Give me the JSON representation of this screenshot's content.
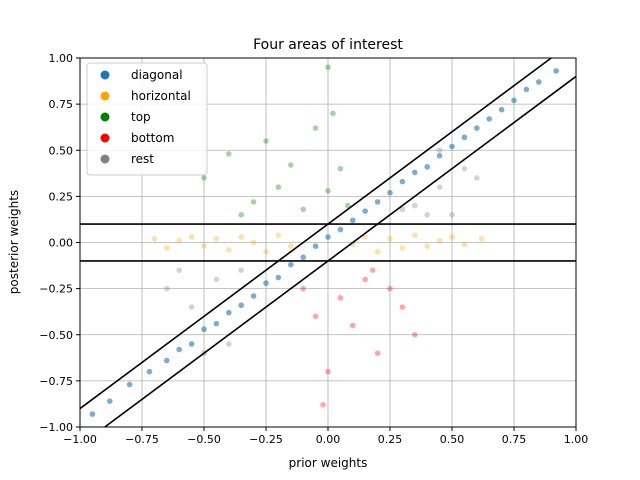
{
  "chart_data": {
    "type": "scatter",
    "title": "Four areas of interest",
    "xlabel": "prior weights",
    "ylabel": "posterior weights",
    "xlim": [
      -1.0,
      1.0
    ],
    "ylim": [
      -1.0,
      1.0
    ],
    "xticks": [
      "−1.00",
      "−0.75",
      "−0.50",
      "−0.25",
      "0.00",
      "0.25",
      "0.50",
      "0.75",
      "1.00"
    ],
    "yticks": [
      "−1.00",
      "−0.75",
      "−0.50",
      "−0.25",
      "0.00",
      "0.25",
      "0.50",
      "0.75",
      "1.00"
    ],
    "tick_values": [
      -1.0,
      -0.75,
      -0.5,
      -0.25,
      0.0,
      0.25,
      0.5,
      0.75,
      1.0
    ],
    "grid": true,
    "legend_position": "top-left",
    "series": [
      {
        "name": "diagonal",
        "color": "#1f77b4",
        "region": "|y - x| < 0.1"
      },
      {
        "name": "horizontal",
        "color": "#ffa500",
        "region": "|y| < 0.1"
      },
      {
        "name": "top",
        "color": "#008000",
        "region": "y > 0.1 and y - x > 0.1"
      },
      {
        "name": "bottom",
        "color": "#ff0000",
        "region": "y < -0.1 and x - y > 0.1"
      },
      {
        "name": "rest",
        "color": "#808080",
        "region": "all other points"
      }
    ],
    "boundary_lines": [
      {
        "kind": "diagonal",
        "slope": 1,
        "intercept": 0.1
      },
      {
        "kind": "diagonal",
        "slope": 1,
        "intercept": -0.1
      },
      {
        "kind": "horizontal",
        "y": 0.1
      },
      {
        "kind": "horizontal",
        "y": -0.1
      }
    ],
    "points": {
      "diagonal": [
        [
          -0.95,
          -0.93
        ],
        [
          -0.88,
          -0.86
        ],
        [
          -0.8,
          -0.77
        ],
        [
          -0.72,
          -0.7
        ],
        [
          -0.65,
          -0.64
        ],
        [
          -0.6,
          -0.58
        ],
        [
          -0.55,
          -0.55
        ],
        [
          -0.5,
          -0.47
        ],
        [
          -0.45,
          -0.44
        ],
        [
          -0.4,
          -0.38
        ],
        [
          -0.35,
          -0.34
        ],
        [
          -0.3,
          -0.29
        ],
        [
          -0.25,
          -0.22
        ],
        [
          -0.2,
          -0.19
        ],
        [
          -0.15,
          -0.12
        ],
        [
          -0.1,
          -0.08
        ],
        [
          -0.05,
          -0.02
        ],
        [
          0.0,
          0.03
        ],
        [
          0.05,
          0.07
        ],
        [
          0.1,
          0.12
        ],
        [
          0.15,
          0.17
        ],
        [
          0.2,
          0.22
        ],
        [
          0.25,
          0.27
        ],
        [
          0.3,
          0.33
        ],
        [
          0.35,
          0.38
        ],
        [
          0.4,
          0.41
        ],
        [
          0.45,
          0.47
        ],
        [
          0.5,
          0.52
        ],
        [
          0.55,
          0.57
        ],
        [
          0.6,
          0.62
        ],
        [
          0.65,
          0.67
        ],
        [
          0.7,
          0.72
        ],
        [
          0.75,
          0.77
        ],
        [
          0.8,
          0.83
        ],
        [
          0.85,
          0.87
        ],
        [
          0.92,
          0.93
        ]
      ],
      "horizontal": [
        [
          -0.7,
          0.02
        ],
        [
          -0.65,
          -0.03
        ],
        [
          -0.6,
          0.01
        ],
        [
          -0.55,
          0.03
        ],
        [
          -0.5,
          -0.02
        ],
        [
          -0.45,
          0.02
        ],
        [
          -0.4,
          -0.04
        ],
        [
          -0.35,
          0.03
        ],
        [
          -0.3,
          0.0
        ],
        [
          -0.25,
          -0.05
        ],
        [
          -0.2,
          0.04
        ],
        [
          -0.15,
          -0.02
        ],
        [
          0.1,
          -0.01
        ],
        [
          0.15,
          0.03
        ],
        [
          0.2,
          -0.05
        ],
        [
          0.25,
          0.02
        ],
        [
          0.3,
          -0.03
        ],
        [
          0.35,
          0.04
        ],
        [
          0.4,
          -0.02
        ],
        [
          0.45,
          0.01
        ],
        [
          0.5,
          0.03
        ],
        [
          0.55,
          -0.01
        ],
        [
          0.62,
          0.02
        ]
      ],
      "top": [
        [
          -0.5,
          0.35
        ],
        [
          -0.4,
          0.48
        ],
        [
          -0.3,
          0.22
        ],
        [
          -0.25,
          0.55
        ],
        [
          -0.2,
          0.3
        ],
        [
          -0.15,
          0.42
        ],
        [
          -0.1,
          0.18
        ],
        [
          -0.05,
          0.62
        ],
        [
          0.0,
          0.28
        ],
        [
          0.02,
          0.7
        ],
        [
          0.05,
          0.4
        ],
        [
          0.08,
          0.2
        ],
        [
          -0.35,
          0.15
        ],
        [
          0.0,
          0.95
        ]
      ],
      "bottom": [
        [
          0.0,
          -0.7
        ],
        [
          0.05,
          -0.3
        ],
        [
          0.1,
          -0.45
        ],
        [
          0.15,
          -0.2
        ],
        [
          0.2,
          -0.6
        ],
        [
          -0.05,
          -0.4
        ],
        [
          0.25,
          -0.25
        ],
        [
          0.3,
          -0.35
        ],
        [
          -0.1,
          -0.25
        ],
        [
          -0.02,
          -0.88
        ],
        [
          0.18,
          -0.15
        ],
        [
          0.35,
          -0.5
        ]
      ],
      "rest": [
        [
          -0.65,
          -0.25
        ],
        [
          -0.55,
          -0.35
        ],
        [
          -0.45,
          -0.2
        ],
        [
          -0.4,
          -0.55
        ],
        [
          -0.35,
          -0.15
        ],
        [
          -0.6,
          -0.15
        ],
        [
          -0.5,
          -0.6
        ],
        [
          0.35,
          0.2
        ],
        [
          0.45,
          0.3
        ],
        [
          0.5,
          0.15
        ],
        [
          0.55,
          0.4
        ],
        [
          0.4,
          0.15
        ],
        [
          0.6,
          0.35
        ],
        [
          0.3,
          0.18
        ],
        [
          0.45,
          0.5
        ]
      ]
    }
  },
  "legend": [
    {
      "name": "diagonal",
      "color": "#1f77b4"
    },
    {
      "name": "horizontal",
      "color": "#ffa500"
    },
    {
      "name": "top",
      "color": "#008000"
    },
    {
      "name": "bottom",
      "color": "#ff0000"
    },
    {
      "name": "rest",
      "color": "#808080"
    }
  ]
}
